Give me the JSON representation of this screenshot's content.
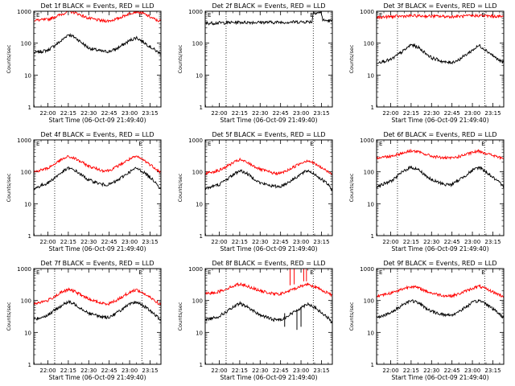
{
  "colors": {
    "events": "#000000",
    "lld": "#ff0000",
    "frame": "#000000",
    "background": "#ffffff"
  },
  "chart_data": [
    {
      "type": "line",
      "title": "Det 1f BLACK = Events, RED = LLD",
      "xlabel": "Start Time (06-Oct-09 21:49:40)",
      "ylabel": "Counts/sec",
      "y_scale": "log",
      "ylim": [
        1,
        1000
      ],
      "y_ticks": [
        "1",
        "10",
        "100",
        "1000"
      ],
      "x_ticks": [
        "22:00",
        "22:15",
        "22:30",
        "22:45",
        "23:00",
        "23:15"
      ],
      "x_range": [
        "21:49:40",
        "23:23:00"
      ],
      "vertical_markers": [
        "22:05",
        "23:09"
      ],
      "marker_labels": [
        "E"
      ],
      "series": [
        {
          "color": "black",
          "x": [
            "21:50",
            "22:00",
            "22:10",
            "22:15",
            "22:20",
            "22:30",
            "22:40",
            "22:45",
            "22:50",
            "23:00",
            "23:05",
            "23:10",
            "23:20",
            "23:22"
          ],
          "values": [
            50,
            60,
            120,
            190,
            150,
            70,
            55,
            55,
            65,
            120,
            150,
            110,
            55,
            50
          ]
        },
        {
          "color": "red",
          "x": [
            "21:50",
            "22:00",
            "22:10",
            "22:15",
            "22:20",
            "22:30",
            "22:40",
            "22:45",
            "22:50",
            "23:00",
            "23:05",
            "23:10",
            "23:20",
            "23:22"
          ],
          "values": [
            520,
            550,
            800,
            1000,
            900,
            600,
            500,
            500,
            560,
            850,
            1000,
            850,
            520,
            500
          ]
        }
      ]
    },
    {
      "type": "line",
      "title": "Det 2f BLACK = Events, RED = LLD",
      "xlabel": "Start Time (06-Oct-09 21:49:40)",
      "ylabel": "Counts/sec",
      "y_scale": "log",
      "ylim": [
        1,
        1000
      ],
      "y_ticks": [
        "1",
        "10",
        "100",
        "1000"
      ],
      "x_ticks": [
        "22:00",
        "22:15",
        "22:30",
        "22:45",
        "23:00",
        "23:15"
      ],
      "x_range": [
        "21:49:40",
        "23:23:00"
      ],
      "vertical_markers": [
        "22:05",
        "23:09"
      ],
      "marker_labels": [
        "E"
      ],
      "series": [
        {
          "color": "black",
          "x": [
            "21:50",
            "22:15",
            "22:45",
            "23:05",
            "23:08",
            "23:09",
            "23:15",
            "23:16",
            "23:22"
          ],
          "values": [
            420,
            450,
            450,
            470,
            470,
            900,
            900,
            520,
            500
          ]
        },
        {
          "color": "red",
          "x": [
            "21:50",
            "22:15",
            "22:45",
            "23:10",
            "23:15",
            "23:22"
          ],
          "values": [
            1250,
            1300,
            1300,
            1350,
            1300,
            1300
          ]
        }
      ]
    },
    {
      "type": "line",
      "title": "Det 3f BLACK = Events, RED = LLD",
      "xlabel": "Start Time (06-Oct-09 21:49:40)",
      "ylabel": "Counts/sec",
      "y_scale": "log",
      "ylim": [
        1,
        1000
      ],
      "y_ticks": [
        "1",
        "10",
        "100",
        "1000"
      ],
      "x_ticks": [
        "22:00",
        "22:15",
        "22:30",
        "22:45",
        "23:00",
        "23:15"
      ],
      "x_range": [
        "21:49:40",
        "23:23:00"
      ],
      "vertical_markers": [
        "22:05",
        "23:09"
      ],
      "marker_labels": [
        "E"
      ],
      "series": [
        {
          "color": "black",
          "x": [
            "21:50",
            "22:00",
            "22:10",
            "22:15",
            "22:20",
            "22:30",
            "22:40",
            "22:45",
            "22:50",
            "23:00",
            "23:05",
            "23:10",
            "23:20",
            "23:22"
          ],
          "values": [
            25,
            30,
            60,
            90,
            75,
            35,
            25,
            25,
            30,
            60,
            85,
            60,
            28,
            25
          ]
        },
        {
          "color": "red",
          "x": [
            "21:50",
            "22:15",
            "22:45",
            "23:05",
            "23:22"
          ],
          "values": [
            650,
            720,
            680,
            730,
            680
          ]
        }
      ]
    },
    {
      "type": "line",
      "title": "Det 4f BLACK = Events, RED = LLD",
      "xlabel": "Start Time (06-Oct-09 21:49:40)",
      "ylabel": "Counts/sec",
      "y_scale": "log",
      "ylim": [
        1,
        1000
      ],
      "y_ticks": [
        "1",
        "10",
        "100",
        "1000"
      ],
      "x_ticks": [
        "22:00",
        "22:15",
        "22:30",
        "22:45",
        "23:00",
        "23:15"
      ],
      "x_range": [
        "21:49:40",
        "23:23:00"
      ],
      "vertical_markers": [
        "22:05",
        "23:09"
      ],
      "marker_labels": [
        "E"
      ],
      "series": [
        {
          "color": "black",
          "x": [
            "21:50",
            "22:00",
            "22:10",
            "22:15",
            "22:20",
            "22:30",
            "22:40",
            "22:45",
            "22:50",
            "23:00",
            "23:05",
            "23:10",
            "23:20",
            "23:22"
          ],
          "values": [
            30,
            45,
            95,
            130,
            110,
            55,
            40,
            40,
            50,
            100,
            130,
            100,
            45,
            30
          ]
        },
        {
          "color": "red",
          "x": [
            "21:50",
            "22:00",
            "22:10",
            "22:15",
            "22:20",
            "22:30",
            "22:40",
            "22:45",
            "22:50",
            "23:00",
            "23:05",
            "23:10",
            "23:20",
            "23:22"
          ],
          "values": [
            100,
            130,
            240,
            300,
            260,
            150,
            110,
            110,
            140,
            250,
            300,
            240,
            120,
            100
          ]
        }
      ]
    },
    {
      "type": "line",
      "title": "Det 5f BLACK = Events, RED = LLD",
      "xlabel": "Start Time (06-Oct-09 21:49:40)",
      "ylabel": "Counts/sec",
      "y_scale": "log",
      "ylim": [
        1,
        1000
      ],
      "y_ticks": [
        "1",
        "10",
        "100",
        "1000"
      ],
      "x_ticks": [
        "22:00",
        "22:15",
        "22:30",
        "22:45",
        "23:00",
        "23:15"
      ],
      "x_range": [
        "21:49:40",
        "23:23:00"
      ],
      "vertical_markers": [
        "22:05",
        "23:09"
      ],
      "marker_labels": [
        "E"
      ],
      "series": [
        {
          "color": "black",
          "x": [
            "21:50",
            "22:00",
            "22:10",
            "22:15",
            "22:20",
            "22:30",
            "22:40",
            "22:45",
            "22:50",
            "23:00",
            "23:05",
            "23:10",
            "23:20",
            "23:22"
          ],
          "values": [
            30,
            40,
            80,
            110,
            90,
            45,
            35,
            35,
            45,
            85,
            110,
            85,
            40,
            28
          ]
        },
        {
          "color": "red",
          "x": [
            "21:50",
            "22:00",
            "22:10",
            "22:15",
            "22:20",
            "22:30",
            "22:40",
            "22:45",
            "22:50",
            "23:00",
            "23:05",
            "23:10",
            "23:20",
            "23:22"
          ],
          "values": [
            90,
            110,
            190,
            240,
            200,
            120,
            90,
            90,
            110,
            190,
            230,
            180,
            100,
            90
          ]
        }
      ]
    },
    {
      "type": "line",
      "title": "Det 6f BLACK = Events, RED = LLD",
      "xlabel": "Start Time (06-Oct-09 21:49:40)",
      "ylabel": "Counts/sec",
      "y_scale": "log",
      "ylim": [
        1,
        1000
      ],
      "y_ticks": [
        "1",
        "10",
        "100",
        "1000"
      ],
      "x_ticks": [
        "22:00",
        "22:15",
        "22:30",
        "22:45",
        "23:00",
        "23:15"
      ],
      "x_range": [
        "21:49:40",
        "23:23:00"
      ],
      "vertical_markers": [
        "22:05",
        "23:09"
      ],
      "marker_labels": [
        "E"
      ],
      "series": [
        {
          "color": "black",
          "x": [
            "21:50",
            "22:00",
            "22:10",
            "22:15",
            "22:20",
            "22:30",
            "22:40",
            "22:45",
            "22:50",
            "23:00",
            "23:05",
            "23:10",
            "23:20",
            "23:22"
          ],
          "values": [
            35,
            50,
            110,
            140,
            120,
            55,
            40,
            40,
            55,
            110,
            140,
            100,
            45,
            35
          ]
        },
        {
          "color": "red",
          "x": [
            "21:50",
            "22:00",
            "22:10",
            "22:15",
            "22:20",
            "22:30",
            "22:40",
            "22:45",
            "22:50",
            "23:00",
            "23:05",
            "23:10",
            "23:20",
            "23:22"
          ],
          "values": [
            280,
            310,
            400,
            460,
            420,
            310,
            270,
            270,
            300,
            400,
            450,
            380,
            280,
            270
          ]
        }
      ]
    },
    {
      "type": "line",
      "title": "Det 7f BLACK = Events, RED = LLD",
      "xlabel": "Start Time (06-Oct-09 21:49:40)",
      "ylabel": "Counts/sec",
      "y_scale": "log",
      "ylim": [
        1,
        1000
      ],
      "y_ticks": [
        "1",
        "10",
        "100",
        "1000"
      ],
      "x_ticks": [
        "22:00",
        "22:15",
        "22:30",
        "22:45",
        "23:00",
        "23:15"
      ],
      "x_range": [
        "21:49:40",
        "23:23:00"
      ],
      "vertical_markers": [
        "22:05",
        "23:09"
      ],
      "marker_labels": [
        "E"
      ],
      "series": [
        {
          "color": "black",
          "x": [
            "21:50",
            "22:00",
            "22:10",
            "22:15",
            "22:20",
            "22:30",
            "22:40",
            "22:45",
            "22:50",
            "23:00",
            "23:05",
            "23:10",
            "23:20",
            "23:22"
          ],
          "values": [
            25,
            35,
            70,
            90,
            75,
            40,
            30,
            30,
            40,
            75,
            90,
            70,
            32,
            25
          ]
        },
        {
          "color": "red",
          "x": [
            "21:50",
            "22:00",
            "22:10",
            "22:15",
            "22:20",
            "22:30",
            "22:40",
            "22:45",
            "22:50",
            "23:00",
            "23:05",
            "23:10",
            "23:20",
            "23:22"
          ],
          "values": [
            80,
            100,
            180,
            220,
            190,
            110,
            80,
            80,
            100,
            180,
            220,
            170,
            90,
            75
          ]
        }
      ]
    },
    {
      "type": "line",
      "title": "Det 8f BLACK = Events, RED = LLD",
      "xlabel": "Start Time (06-Oct-09 21:49:40)",
      "ylabel": "Counts/sec",
      "y_scale": "log",
      "ylim": [
        1,
        1000
      ],
      "y_ticks": [
        "1",
        "10",
        "100",
        "1000"
      ],
      "x_ticks": [
        "22:00",
        "22:15",
        "22:30",
        "22:45",
        "23:00",
        "23:15"
      ],
      "x_range": [
        "21:49:40",
        "23:23:00"
      ],
      "vertical_markers": [
        "22:05",
        "23:09"
      ],
      "marker_labels": [
        "E"
      ],
      "series": [
        {
          "color": "black",
          "x": [
            "21:50",
            "22:00",
            "22:10",
            "22:15",
            "22:20",
            "22:30",
            "22:40",
            "22:45",
            "22:50",
            "23:00",
            "23:05",
            "23:10",
            "23:20",
            "23:22"
          ],
          "values": [
            25,
            32,
            60,
            80,
            65,
            35,
            25,
            25,
            32,
            60,
            80,
            60,
            28,
            22
          ]
        },
        {
          "color": "red",
          "x": [
            "21:50",
            "22:00",
            "22:10",
            "22:15",
            "22:20",
            "22:30",
            "22:40",
            "22:45",
            "22:50",
            "23:00",
            "23:05",
            "23:10",
            "23:20",
            "23:22"
          ],
          "values": [
            160,
            190,
            280,
            330,
            290,
            200,
            160,
            160,
            190,
            280,
            330,
            270,
            170,
            150
          ]
        }
      ],
      "spikes": [
        {
          "series": "red",
          "x": "22:52",
          "values": [
            300,
            1200
          ]
        },
        {
          "series": "red",
          "x": "22:55",
          "values": [
            320,
            1200
          ]
        },
        {
          "series": "red",
          "x": "23:02",
          "values": [
            400,
            1200
          ]
        },
        {
          "series": "red",
          "x": "23:04",
          "values": [
            400,
            1200
          ]
        },
        {
          "series": "black",
          "x": "22:48",
          "values": [
            15,
            40
          ]
        },
        {
          "series": "black",
          "x": "22:57",
          "values": [
            12,
            50
          ]
        },
        {
          "series": "black",
          "x": "23:00",
          "values": [
            15,
            60
          ]
        }
      ]
    },
    {
      "type": "line",
      "title": "Det 9f BLACK = Events, RED = LLD",
      "xlabel": "Start Time (06-Oct-09 21:49:40)",
      "ylabel": "Counts/sec",
      "y_scale": "log",
      "ylim": [
        1,
        1000
      ],
      "y_ticks": [
        "1",
        "10",
        "100",
        "1000"
      ],
      "x_ticks": [
        "22:00",
        "22:15",
        "22:30",
        "22:45",
        "23:00",
        "23:15"
      ],
      "x_range": [
        "21:49:40",
        "23:23:00"
      ],
      "vertical_markers": [
        "22:05",
        "23:09"
      ],
      "marker_labels": [
        "E"
      ],
      "series": [
        {
          "color": "black",
          "x": [
            "21:50",
            "22:00",
            "22:10",
            "22:15",
            "22:20",
            "22:30",
            "22:40",
            "22:45",
            "22:50",
            "23:00",
            "23:05",
            "23:10",
            "23:20",
            "23:22"
          ],
          "values": [
            30,
            40,
            80,
            100,
            85,
            45,
            35,
            35,
            45,
            85,
            100,
            80,
            38,
            30
          ]
        },
        {
          "color": "red",
          "x": [
            "21:50",
            "22:00",
            "22:10",
            "22:15",
            "22:20",
            "22:30",
            "22:40",
            "22:45",
            "22:50",
            "23:00",
            "23:05",
            "23:10",
            "23:20",
            "23:22"
          ],
          "values": [
            140,
            170,
            240,
            280,
            250,
            170,
            140,
            140,
            160,
            240,
            280,
            230,
            150,
            135
          ]
        }
      ]
    }
  ]
}
